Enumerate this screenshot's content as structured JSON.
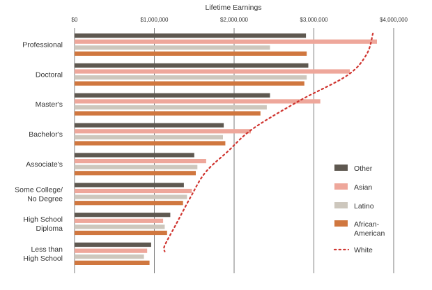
{
  "chart_data": {
    "type": "bar",
    "orientation": "horizontal",
    "title": "Lifetime Earnings",
    "categories": [
      [
        "Professional"
      ],
      [
        "Doctoral"
      ],
      [
        "Master's"
      ],
      [
        "Bachelor's"
      ],
      [
        "Associate's"
      ],
      [
        "Some College/",
        "No Degree"
      ],
      [
        "High School",
        "Diploma"
      ],
      [
        "Less than",
        "High School"
      ]
    ],
    "x_ticks": [
      "$0",
      "$1,000,000",
      "$2,000,000",
      "$3,000,000",
      "$4,000,000"
    ],
    "xlim": [
      0,
      4000000
    ],
    "grid": true,
    "legend_position": "right",
    "series": [
      {
        "name": "Other",
        "color": "#5e5850",
        "values": [
          2900000,
          2930000,
          2450000,
          1870000,
          1500000,
          1370000,
          1200000,
          960000
        ]
      },
      {
        "name": "Asian",
        "color": "#eea79b",
        "values": [
          3790000,
          3450000,
          3080000,
          2210000,
          1650000,
          1470000,
          1110000,
          910000
        ]
      },
      {
        "name": "Latino",
        "color": "#cdc7bd",
        "values": [
          2450000,
          2910000,
          2410000,
          1860000,
          1540000,
          1410000,
          1130000,
          870000
        ]
      },
      {
        "name": "African-American",
        "color": "#d0773f",
        "values": [
          2910000,
          2880000,
          2330000,
          1890000,
          1520000,
          1360000,
          1160000,
          940000
        ]
      }
    ],
    "line_series": {
      "name": "White",
      "color": "#d03530",
      "style": "dotted",
      "points": [
        [
          3740000,
          0
        ],
        [
          3660000,
          0.7
        ],
        [
          3420000,
          1.4
        ],
        [
          2820000,
          2.25
        ],
        [
          2230000,
          3.2
        ],
        [
          1920000,
          3.95
        ],
        [
          1640000,
          4.65
        ],
        [
          1460000,
          5.45
        ],
        [
          1270000,
          6.4
        ],
        [
          1130000,
          7.1
        ],
        [
          1130000,
          7.3
        ]
      ]
    },
    "legend": [
      {
        "label": "Other",
        "lines": [
          "Other"
        ],
        "color": "#5e5850",
        "kind": "bar"
      },
      {
        "label": "Asian",
        "lines": [
          "Asian"
        ],
        "color": "#eea79b",
        "kind": "bar"
      },
      {
        "label": "Latino",
        "lines": [
          "Latino"
        ],
        "color": "#cdc7bd",
        "kind": "bar"
      },
      {
        "label": "African-American",
        "lines": [
          "African-",
          "American"
        ],
        "color": "#d0773f",
        "kind": "bar"
      },
      {
        "label": "White",
        "lines": [
          "White"
        ],
        "color": "#d03530",
        "kind": "dotted-line"
      }
    ]
  }
}
